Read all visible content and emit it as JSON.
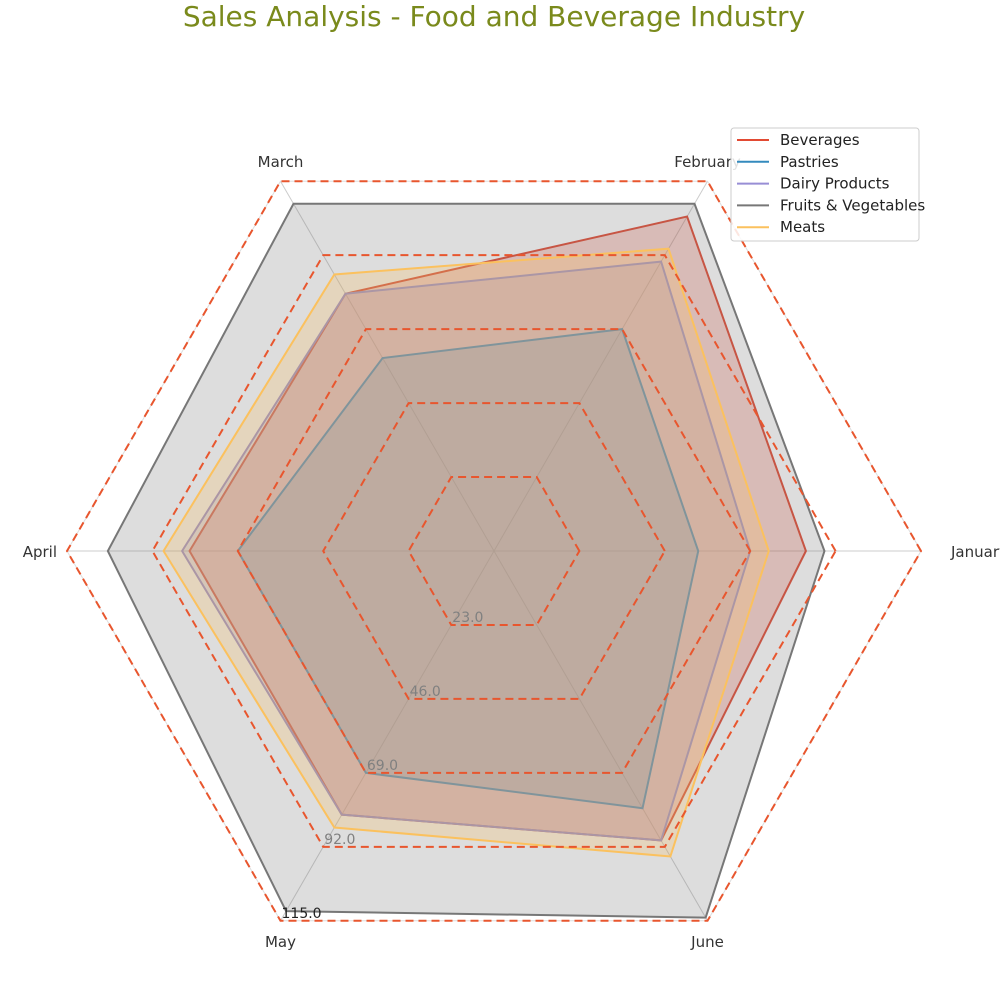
{
  "chart_data": {
    "type": "radar",
    "title": "Sales Analysis - Food and Beverage Industry",
    "title_color": "#7a8a1c",
    "categories": [
      "January",
      "February",
      "March",
      "April",
      "May",
      "June"
    ],
    "radial_ticks": [
      "23.0",
      "46.0",
      "69.0",
      "92.0",
      "115.0"
    ],
    "radial_tick_values": [
      23,
      46,
      69,
      92,
      115
    ],
    "rmax": 115,
    "grid_color": "#e8562e",
    "series": [
      {
        "name": "Beverages",
        "color": "#e24a33",
        "values": [
          84,
          104,
          80,
          82,
          82,
          90
        ]
      },
      {
        "name": "Pastries",
        "color": "#348abd",
        "values": [
          55,
          69,
          60,
          69,
          69,
          80
        ]
      },
      {
        "name": "Dairy Products",
        "color": "#988ed5",
        "values": [
          69,
          90,
          80,
          84,
          82,
          90
        ]
      },
      {
        "name": "Fruits & Vegetables",
        "color": "#777777",
        "values": [
          89,
          108,
          108,
          104,
          112,
          114
        ]
      },
      {
        "name": "Meats",
        "color": "#fbc15e",
        "values": [
          74,
          94,
          86,
          89,
          86,
          95
        ]
      }
    ],
    "legend_position": "top-right",
    "grid": true
  }
}
